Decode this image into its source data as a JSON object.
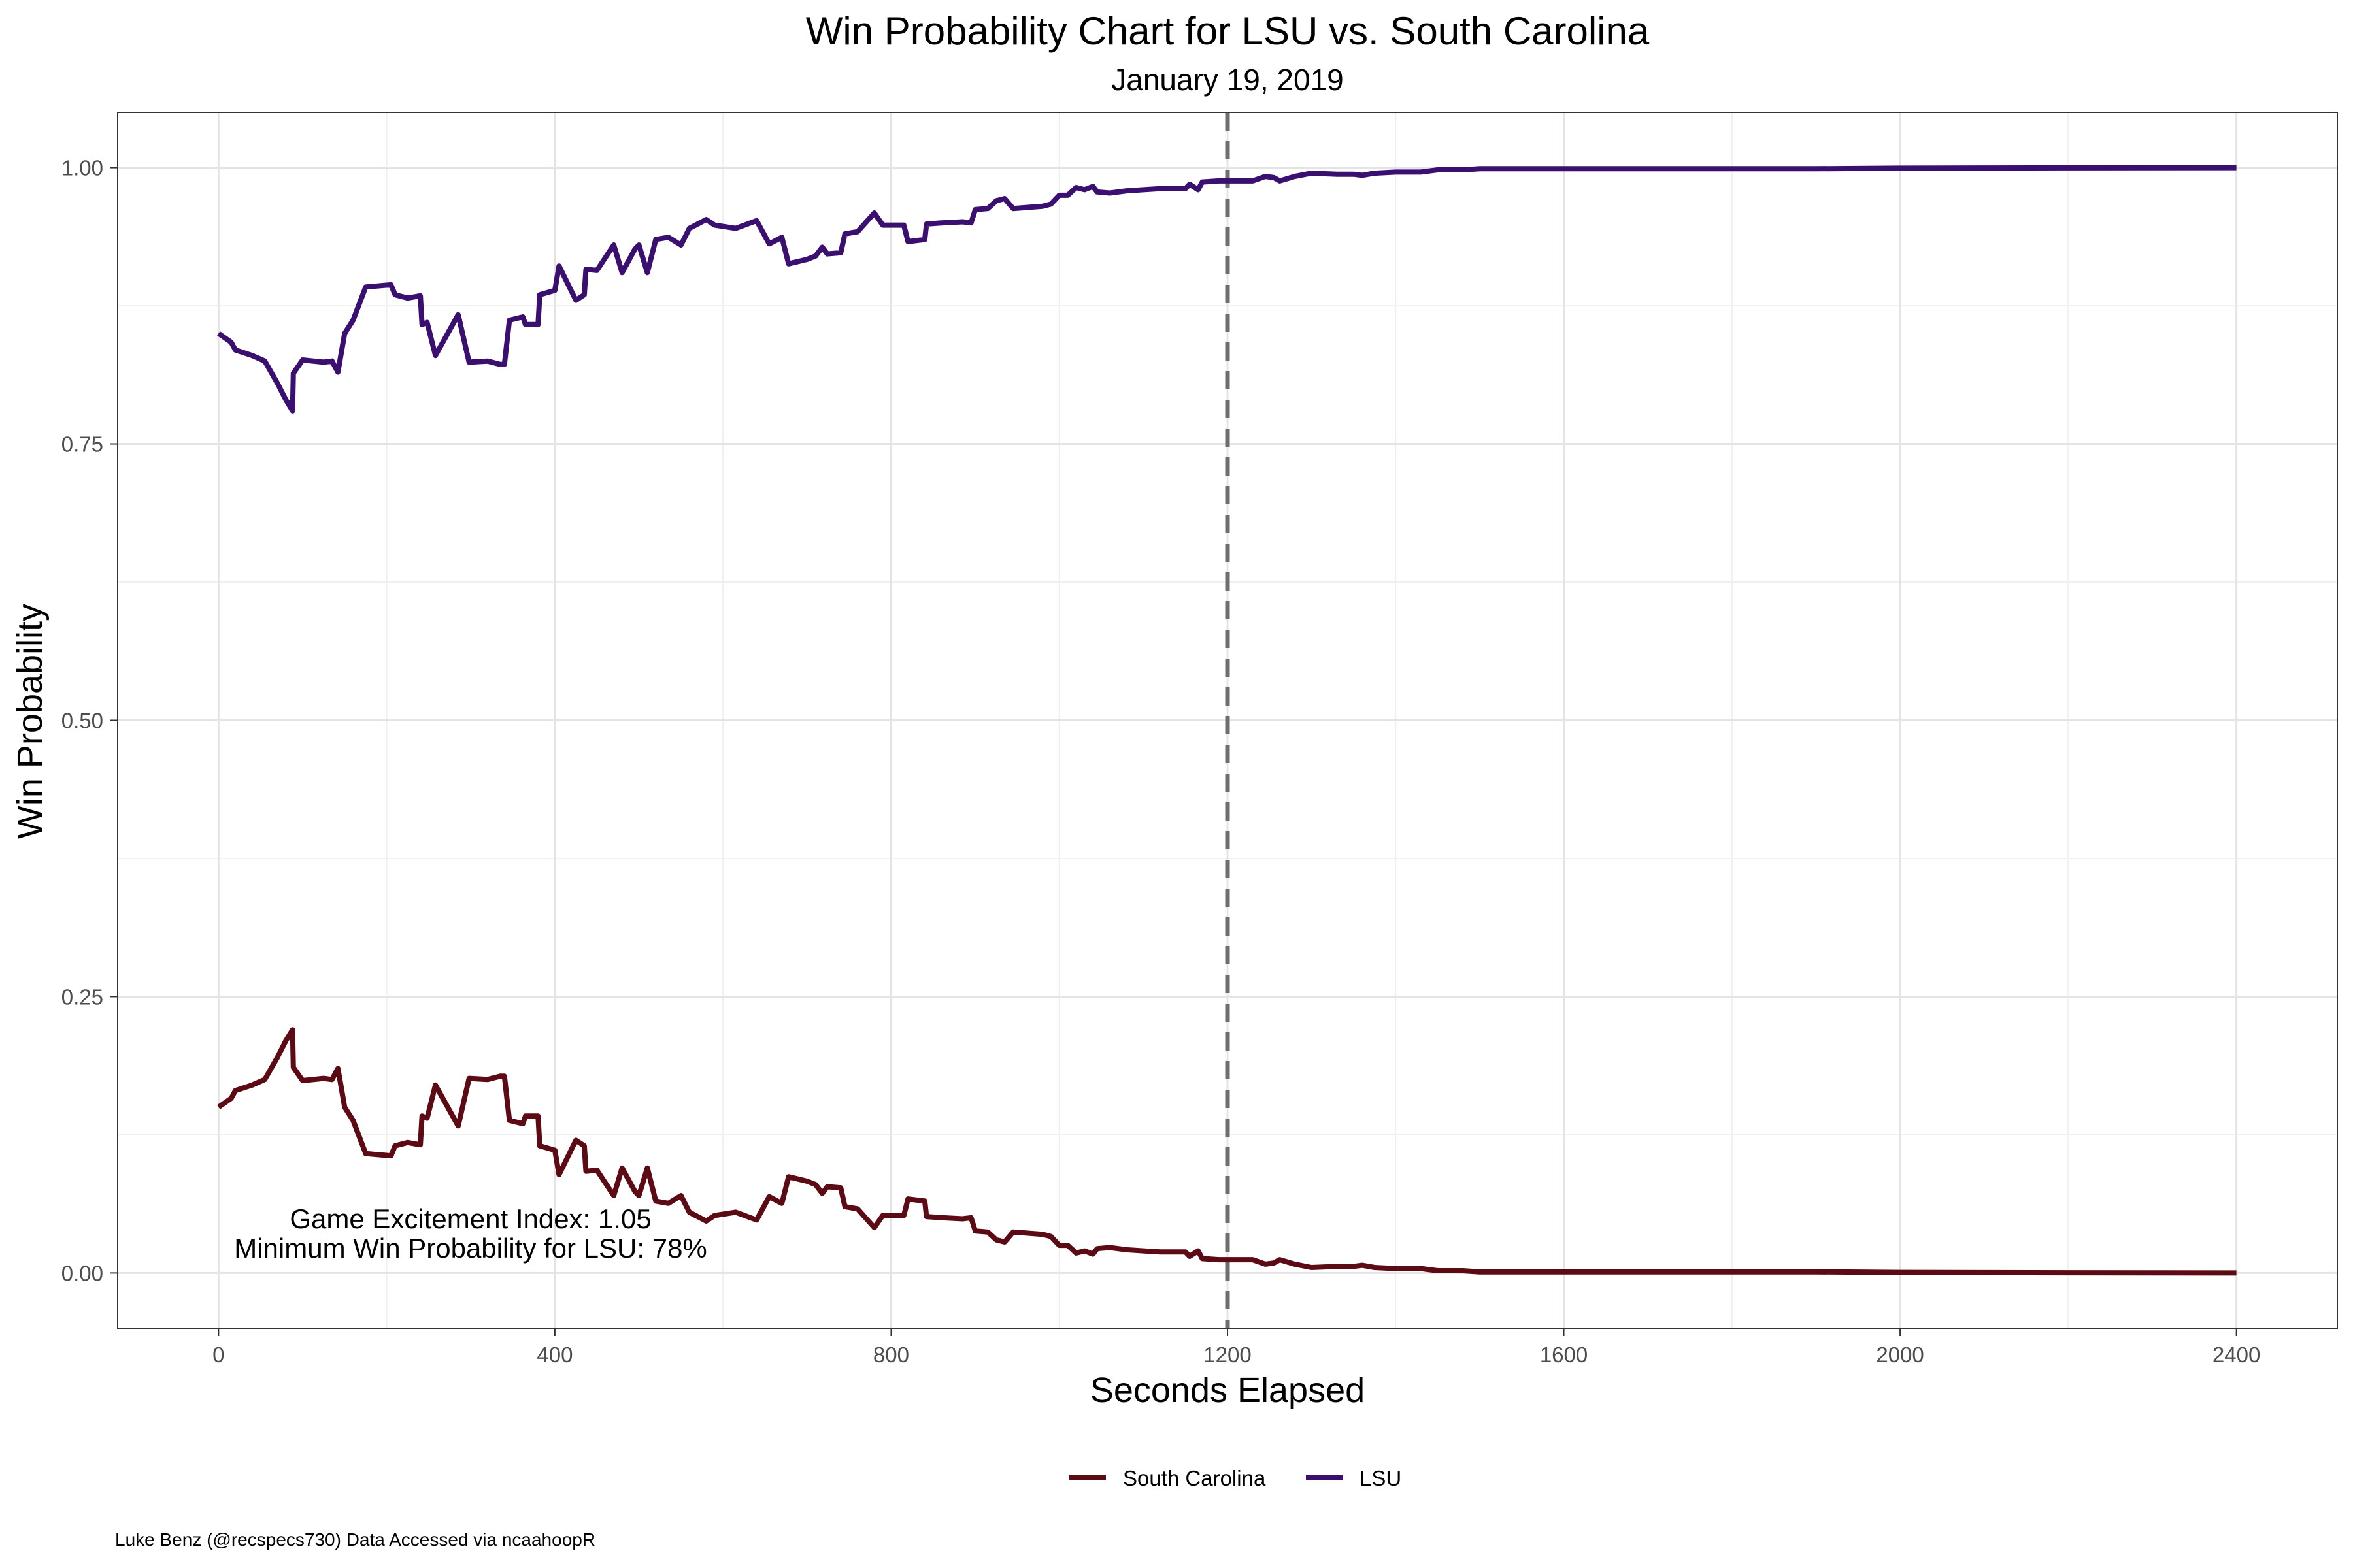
{
  "chart_data": {
    "type": "line",
    "title": "Win Probability Chart for LSU vs. South Carolina",
    "subtitle": "January 19, 2019",
    "xlabel": "Seconds Elapsed",
    "ylabel": "Win Probability",
    "xlim": [
      -120,
      2520
    ],
    "ylim": [
      -0.05,
      1.05
    ],
    "x_ticks": [
      0,
      400,
      800,
      1200,
      1600,
      2000,
      2400
    ],
    "x_tick_labels": [
      "0",
      "400",
      "800",
      "1200",
      "1600",
      "2000",
      "2400"
    ],
    "y_ticks": [
      0.0,
      0.25,
      0.5,
      0.75,
      1.0
    ],
    "y_tick_labels": [
      "0.00",
      "0.25",
      "0.50",
      "0.75",
      "1.00"
    ],
    "grid": true,
    "legend_position": "bottom",
    "halftime_x": 1200,
    "annotations": [
      "Game Excitement Index: 1.05",
      "Minimum Win Probability for LSU: 78%"
    ],
    "caption": "Luke Benz (@recspecs730) Data Accessed via ncaahoopR",
    "series": [
      {
        "name": "South Carolina",
        "color": "#5c0a14",
        "points": [
          [
            0,
            0.15
          ],
          [
            15,
            0.158
          ],
          [
            20,
            0.165
          ],
          [
            40,
            0.17
          ],
          [
            55,
            0.175
          ],
          [
            70,
            0.195
          ],
          [
            80,
            0.21
          ],
          [
            88,
            0.22
          ],
          [
            89,
            0.186
          ],
          [
            100,
            0.174
          ],
          [
            125,
            0.176
          ],
          [
            135,
            0.175
          ],
          [
            142,
            0.185
          ],
          [
            150,
            0.15
          ],
          [
            160,
            0.138
          ],
          [
            175,
            0.108
          ],
          [
            205,
            0.106
          ],
          [
            210,
            0.115
          ],
          [
            225,
            0.118
          ],
          [
            240,
            0.116
          ],
          [
            242,
            0.142
          ],
          [
            248,
            0.14
          ],
          [
            258,
            0.17
          ],
          [
            285,
            0.133
          ],
          [
            298,
            0.176
          ],
          [
            320,
            0.175
          ],
          [
            335,
            0.178
          ],
          [
            340,
            0.178
          ],
          [
            346,
            0.138
          ],
          [
            362,
            0.135
          ],
          [
            365,
            0.142
          ],
          [
            380,
            0.142
          ],
          [
            382,
            0.115
          ],
          [
            400,
            0.111
          ],
          [
            405,
            0.089
          ],
          [
            425,
            0.12
          ],
          [
            435,
            0.115
          ],
          [
            437,
            0.092
          ],
          [
            450,
            0.093
          ],
          [
            470,
            0.07
          ],
          [
            480,
            0.095
          ],
          [
            495,
            0.074
          ],
          [
            500,
            0.07
          ],
          [
            510,
            0.095
          ],
          [
            520,
            0.065
          ],
          [
            535,
            0.063
          ],
          [
            550,
            0.07
          ],
          [
            560,
            0.055
          ],
          [
            580,
            0.047
          ],
          [
            590,
            0.052
          ],
          [
            615,
            0.055
          ],
          [
            640,
            0.048
          ],
          [
            655,
            0.069
          ],
          [
            670,
            0.063
          ],
          [
            678,
            0.087
          ],
          [
            700,
            0.083
          ],
          [
            710,
            0.08
          ],
          [
            718,
            0.072
          ],
          [
            724,
            0.078
          ],
          [
            740,
            0.077
          ],
          [
            745,
            0.06
          ],
          [
            760,
            0.058
          ],
          [
            780,
            0.041
          ],
          [
            790,
            0.052
          ],
          [
            800,
            0.052
          ],
          [
            815,
            0.052
          ],
          [
            820,
            0.067
          ],
          [
            840,
            0.065
          ],
          [
            842,
            0.051
          ],
          [
            860,
            0.05
          ],
          [
            885,
            0.049
          ],
          [
            895,
            0.05
          ],
          [
            900,
            0.038
          ],
          [
            915,
            0.037
          ],
          [
            925,
            0.03
          ],
          [
            935,
            0.028
          ],
          [
            945,
            0.037
          ],
          [
            980,
            0.035
          ],
          [
            990,
            0.033
          ],
          [
            1000,
            0.025
          ],
          [
            1010,
            0.025
          ],
          [
            1020,
            0.018
          ],
          [
            1030,
            0.02
          ],
          [
            1040,
            0.017
          ],
          [
            1045,
            0.022
          ],
          [
            1060,
            0.023
          ],
          [
            1080,
            0.021
          ],
          [
            1100,
            0.02
          ],
          [
            1120,
            0.019
          ],
          [
            1150,
            0.019
          ],
          [
            1155,
            0.015
          ],
          [
            1165,
            0.02
          ],
          [
            1170,
            0.013
          ],
          [
            1190,
            0.012
          ],
          [
            1230,
            0.012
          ],
          [
            1245,
            0.008
          ],
          [
            1255,
            0.009
          ],
          [
            1262,
            0.012
          ],
          [
            1280,
            0.008
          ],
          [
            1300,
            0.005
          ],
          [
            1330,
            0.006
          ],
          [
            1350,
            0.006
          ],
          [
            1360,
            0.007
          ],
          [
            1375,
            0.005
          ],
          [
            1400,
            0.004
          ],
          [
            1430,
            0.004
          ],
          [
            1450,
            0.002
          ],
          [
            1480,
            0.002
          ],
          [
            1500,
            0.001
          ],
          [
            1550,
            0.001
          ],
          [
            1600,
            0.001
          ],
          [
            1700,
            0.001
          ],
          [
            1800,
            0.001
          ],
          [
            1900,
            0.001
          ],
          [
            2000,
            0.0005
          ],
          [
            2100,
            0.0003
          ],
          [
            2200,
            0.0002
          ],
          [
            2300,
            0.0001
          ],
          [
            2400,
            0.0
          ]
        ]
      },
      {
        "name": "LSU",
        "color": "#3b0f70",
        "points": [
          [
            0,
            0.85
          ],
          [
            15,
            0.842
          ],
          [
            20,
            0.835
          ],
          [
            40,
            0.83
          ],
          [
            55,
            0.825
          ],
          [
            70,
            0.805
          ],
          [
            80,
            0.79
          ],
          [
            88,
            0.78
          ],
          [
            89,
            0.814
          ],
          [
            100,
            0.826
          ],
          [
            125,
            0.824
          ],
          [
            135,
            0.825
          ],
          [
            142,
            0.815
          ],
          [
            150,
            0.85
          ],
          [
            160,
            0.862
          ],
          [
            175,
            0.892
          ],
          [
            205,
            0.894
          ],
          [
            210,
            0.885
          ],
          [
            225,
            0.882
          ],
          [
            240,
            0.884
          ],
          [
            242,
            0.858
          ],
          [
            248,
            0.86
          ],
          [
            258,
            0.83
          ],
          [
            285,
            0.867
          ],
          [
            298,
            0.824
          ],
          [
            320,
            0.825
          ],
          [
            335,
            0.822
          ],
          [
            340,
            0.822
          ],
          [
            346,
            0.862
          ],
          [
            362,
            0.865
          ],
          [
            365,
            0.858
          ],
          [
            380,
            0.858
          ],
          [
            382,
            0.885
          ],
          [
            400,
            0.889
          ],
          [
            405,
            0.911
          ],
          [
            425,
            0.88
          ],
          [
            435,
            0.885
          ],
          [
            437,
            0.908
          ],
          [
            450,
            0.907
          ],
          [
            470,
            0.93
          ],
          [
            480,
            0.905
          ],
          [
            495,
            0.926
          ],
          [
            500,
            0.93
          ],
          [
            510,
            0.905
          ],
          [
            520,
            0.935
          ],
          [
            535,
            0.937
          ],
          [
            550,
            0.93
          ],
          [
            560,
            0.945
          ],
          [
            580,
            0.953
          ],
          [
            590,
            0.948
          ],
          [
            615,
            0.945
          ],
          [
            640,
            0.952
          ],
          [
            655,
            0.931
          ],
          [
            670,
            0.937
          ],
          [
            678,
            0.913
          ],
          [
            700,
            0.917
          ],
          [
            710,
            0.92
          ],
          [
            718,
            0.928
          ],
          [
            724,
            0.922
          ],
          [
            740,
            0.923
          ],
          [
            745,
            0.94
          ],
          [
            760,
            0.942
          ],
          [
            780,
            0.959
          ],
          [
            790,
            0.948
          ],
          [
            800,
            0.948
          ],
          [
            815,
            0.948
          ],
          [
            820,
            0.933
          ],
          [
            840,
            0.935
          ],
          [
            842,
            0.949
          ],
          [
            860,
            0.95
          ],
          [
            885,
            0.951
          ],
          [
            895,
            0.95
          ],
          [
            900,
            0.962
          ],
          [
            915,
            0.963
          ],
          [
            925,
            0.97
          ],
          [
            935,
            0.972
          ],
          [
            945,
            0.963
          ],
          [
            980,
            0.965
          ],
          [
            990,
            0.967
          ],
          [
            1000,
            0.975
          ],
          [
            1010,
            0.975
          ],
          [
            1020,
            0.982
          ],
          [
            1030,
            0.98
          ],
          [
            1040,
            0.983
          ],
          [
            1045,
            0.978
          ],
          [
            1060,
            0.977
          ],
          [
            1080,
            0.979
          ],
          [
            1100,
            0.98
          ],
          [
            1120,
            0.981
          ],
          [
            1150,
            0.981
          ],
          [
            1155,
            0.985
          ],
          [
            1165,
            0.98
          ],
          [
            1170,
            0.987
          ],
          [
            1190,
            0.988
          ],
          [
            1230,
            0.988
          ],
          [
            1245,
            0.992
          ],
          [
            1255,
            0.991
          ],
          [
            1262,
            0.988
          ],
          [
            1280,
            0.992
          ],
          [
            1300,
            0.995
          ],
          [
            1330,
            0.994
          ],
          [
            1350,
            0.994
          ],
          [
            1360,
            0.993
          ],
          [
            1375,
            0.995
          ],
          [
            1400,
            0.996
          ],
          [
            1430,
            0.996
          ],
          [
            1450,
            0.998
          ],
          [
            1480,
            0.998
          ],
          [
            1500,
            0.999
          ],
          [
            1550,
            0.999
          ],
          [
            1600,
            0.999
          ],
          [
            1700,
            0.999
          ],
          [
            1800,
            0.999
          ],
          [
            1900,
            0.999
          ],
          [
            2000,
            0.9995
          ],
          [
            2100,
            0.9997
          ],
          [
            2200,
            0.9998
          ],
          [
            2300,
            0.9999
          ],
          [
            2400,
            1.0
          ]
        ]
      }
    ]
  }
}
